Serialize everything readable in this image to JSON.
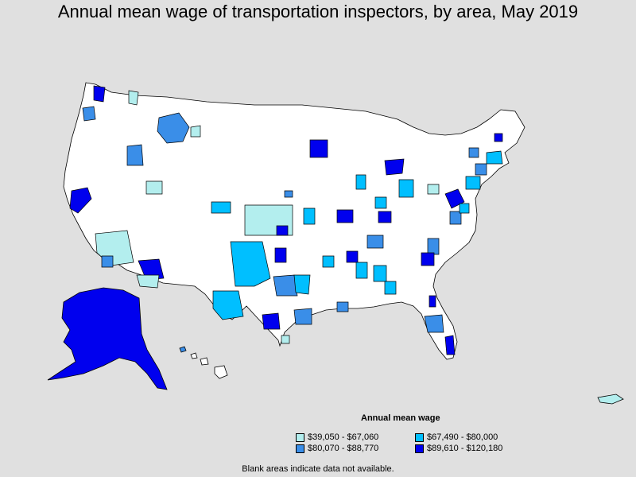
{
  "title": "Annual mean wage of transportation inspectors, by area, May 2019",
  "legend": {
    "title": "Annual mean wage",
    "items": [
      {
        "label": "$39,050 - $67,060",
        "color": "#b3eeee"
      },
      {
        "label": "$67,490 - $80,000",
        "color": "#00bfff"
      },
      {
        "label": "$80,070 - $88,770",
        "color": "#3a8ee8"
      },
      {
        "label": "$89,610 - $120,180",
        "color": "#0000ee"
      }
    ]
  },
  "note": "Blank areas indicate data not available.",
  "colors": {
    "background": "#e0e0e0",
    "land": "#ffffff",
    "border": "#000000"
  }
}
